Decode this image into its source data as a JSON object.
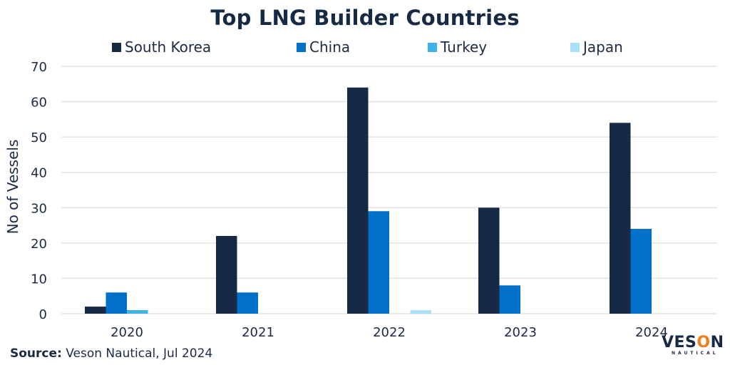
{
  "chart_data": {
    "type": "bar",
    "title": "Top LNG Builder Countries",
    "xlabel": "",
    "ylabel": "No of Vessels",
    "ylim": [
      0,
      70
    ],
    "yticks": [
      0,
      10,
      20,
      30,
      40,
      50,
      60,
      70
    ],
    "grid": true,
    "legend_position": "top",
    "categories": [
      "2020",
      "2021",
      "2022",
      "2023",
      "2024"
    ],
    "series": [
      {
        "name": "South Korea",
        "color": "#172a45",
        "values": [
          2,
          22,
          64,
          30,
          54
        ]
      },
      {
        "name": "China",
        "color": "#0070c8",
        "values": [
          6,
          6,
          29,
          8,
          24
        ]
      },
      {
        "name": "Turkey",
        "color": "#3db4e5",
        "values": [
          1,
          0,
          0,
          0,
          0
        ]
      },
      {
        "name": "Japan",
        "color": "#a8e0f7",
        "values": [
          0,
          0,
          1,
          0,
          0
        ]
      }
    ]
  },
  "footer": {
    "source_label": "Source:",
    "source_text": " Veson Nautical, Jul 2024"
  },
  "logo": {
    "main_prefix": "VES",
    "main_o": "O",
    "main_suffix": "N",
    "sub": "NAUTICAL"
  }
}
